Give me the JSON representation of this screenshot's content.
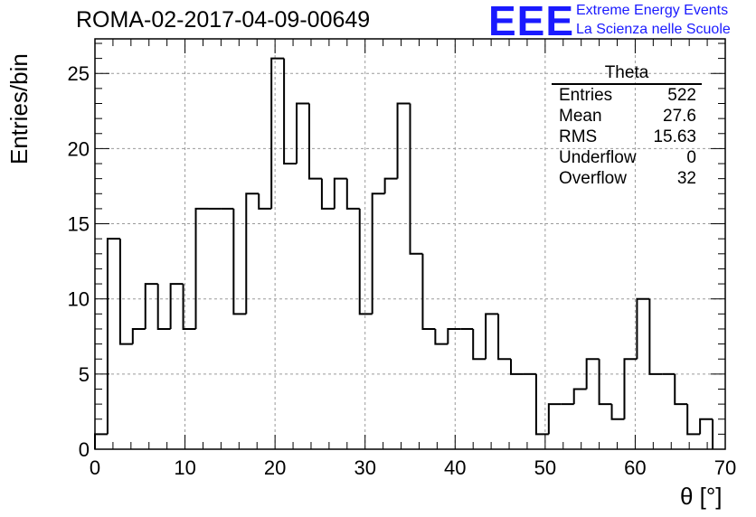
{
  "header": {
    "title": "ROMA-02-2017-04-09-00649",
    "logo_text": "EEE",
    "logo_line1": "Extreme Energy Events",
    "logo_line2": "La Scienza nelle Scuole",
    "logo_color": "#1a1aff"
  },
  "stats_box": {
    "title": "Theta",
    "rows": [
      {
        "label": "Entries",
        "value": "522"
      },
      {
        "label": "Mean",
        "value": "27.6"
      },
      {
        "label": "RMS",
        "value": "15.63"
      },
      {
        "label": "Underflow",
        "value": "0"
      },
      {
        "label": "Overflow",
        "value": "32"
      }
    ]
  },
  "chart_data": {
    "type": "bar",
    "style": "step histogram",
    "title": "ROMA-02-2017-04-09-00649",
    "xlabel": "θ [°]",
    "ylabel": "Entries/bin",
    "xlim": [
      0,
      70
    ],
    "ylim": [
      0,
      27.3
    ],
    "bin_width": 1.4,
    "xticks": [
      0,
      10,
      20,
      30,
      40,
      50,
      60,
      70
    ],
    "yticks": [
      0,
      5,
      10,
      15,
      20,
      25
    ],
    "grid": true,
    "values": [
      1,
      14,
      7,
      8,
      11,
      8,
      11,
      8,
      16,
      16,
      16,
      9,
      17,
      16,
      26,
      19,
      23,
      18,
      16,
      18,
      16,
      9,
      17,
      18,
      23,
      13,
      8,
      7,
      8,
      8,
      6,
      9,
      6,
      5,
      5,
      1,
      3,
      3,
      4,
      6,
      3,
      2,
      6,
      10,
      5,
      5,
      3,
      1,
      2
    ]
  }
}
